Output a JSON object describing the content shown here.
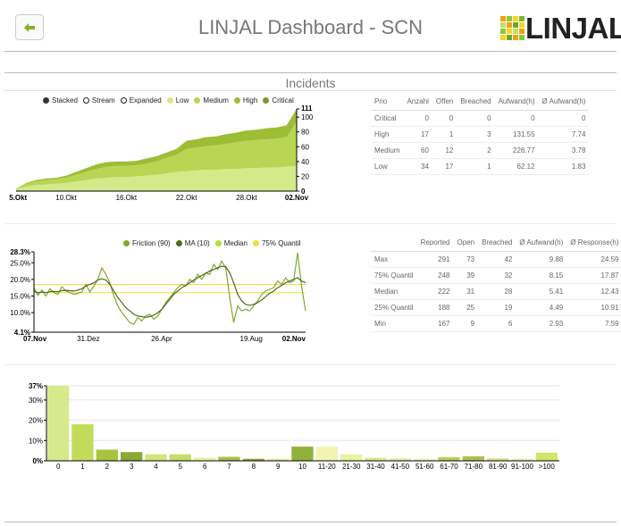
{
  "header": {
    "title": "LINJAL Dashboard - SCN",
    "logo_text": "LINJAL",
    "back_icon": "arrow-left-icon"
  },
  "section": {
    "title": "Incidents"
  },
  "colors": {
    "low": "#d4e98a",
    "medium": "#b8d654",
    "high": "#9bbe35",
    "critical": "#7a9a2a",
    "friction": "#7faa2b",
    "ma": "#4d6a1f",
    "median_line": "#b3df3a",
    "quantile_line": "#f0e03c",
    "bar_light": "#e4f0a0",
    "bar_mid": "#c8df6e",
    "bar_dark": "#9ab43f"
  },
  "area_chart": {
    "legend": [
      {
        "label": "Stacked",
        "style": "filled-dark"
      },
      {
        "label": "Stream",
        "style": "hollow"
      },
      {
        "label": "Expanded",
        "style": "hollow"
      },
      {
        "label": "Low",
        "style": "low"
      },
      {
        "label": "Medium",
        "style": "medium"
      },
      {
        "label": "High",
        "style": "high"
      },
      {
        "label": "Critical",
        "style": "critical"
      }
    ],
    "x_ticks": [
      "05.Okt",
      "10.Okt",
      "16.Okt",
      "22.Okt",
      "28.Okt",
      "02.Nov"
    ],
    "y_ticks": [
      "0",
      "20",
      "40",
      "60",
      "80",
      "100",
      "111"
    ]
  },
  "chart_data": [
    {
      "type": "area",
      "stacked": true,
      "x": [
        "05.Okt",
        "06.Okt",
        "07.Okt",
        "08.Okt",
        "09.Okt",
        "10.Okt",
        "11.Okt",
        "12.Okt",
        "13.Okt",
        "14.Okt",
        "15.Okt",
        "16.Okt",
        "17.Okt",
        "18.Okt",
        "19.Okt",
        "20.Okt",
        "21.Okt",
        "22.Okt",
        "23.Okt",
        "24.Okt",
        "25.Okt",
        "26.Okt",
        "27.Okt",
        "28.Okt",
        "29.Okt",
        "30.Okt",
        "31.Okt",
        "01.Nov",
        "02.Nov"
      ],
      "series": [
        {
          "name": "Low",
          "values": [
            2,
            6,
            8,
            9,
            10,
            11,
            13,
            15,
            17,
            18,
            19,
            19,
            20,
            21,
            22,
            24,
            26,
            27,
            28,
            29,
            29,
            30,
            30,
            31,
            31,
            32,
            32,
            33,
            34
          ]
        },
        {
          "name": "Medium",
          "values": [
            1,
            4,
            5,
            6,
            6,
            7,
            9,
            11,
            13,
            15,
            15,
            15,
            15,
            16,
            18,
            21,
            23,
            30,
            31,
            32,
            33,
            34,
            36,
            37,
            38,
            38,
            39,
            40,
            60
          ]
        },
        {
          "name": "High",
          "values": [
            0,
            1,
            2,
            2,
            2,
            3,
            4,
            5,
            6,
            6,
            6,
            6,
            6,
            7,
            7,
            7,
            8,
            11,
            11,
            12,
            12,
            13,
            13,
            14,
            14,
            15,
            15,
            16,
            17
          ]
        },
        {
          "name": "Critical",
          "values": [
            0,
            0,
            0,
            0,
            0,
            0,
            0,
            0,
            0,
            0,
            0,
            0,
            0,
            0,
            0,
            0,
            0,
            0,
            0,
            0,
            0,
            0,
            0,
            0,
            0,
            0,
            0,
            0,
            0
          ]
        }
      ],
      "ylim": [
        0,
        111
      ]
    },
    {
      "type": "line",
      "x_ticks": [
        "07.Nov",
        "31.Dez",
        "26.Apr",
        "19.Aug",
        "02.Nov"
      ],
      "y_ticks": [
        "4.1%",
        "10.0%",
        "15.0%",
        "20.0%",
        "25.0%",
        "28.3%"
      ],
      "ylim": [
        4.1,
        28.3
      ],
      "series": [
        {
          "name": "Friction (90)",
          "values": [
            17.5,
            15.2,
            16.8,
            15.0,
            17.2,
            16.0,
            15.5,
            17.8,
            16.5,
            16.0,
            15.5,
            15.8,
            16.2,
            18.5,
            16.2,
            18.0,
            20.0,
            23.5,
            21.5,
            19.0,
            15.0,
            12.0,
            10.0,
            8.5,
            7.0,
            6.5,
            8.5,
            7.5,
            9.0,
            9.5,
            8.0,
            9.0,
            11.0,
            13.0,
            14.5,
            16.0,
            17.5,
            18.5,
            18.0,
            20.0,
            19.0,
            21.5,
            20.0,
            22.0,
            21.5,
            24.5,
            23.0,
            25.5,
            23.5,
            14.5,
            7.0,
            12.0,
            10.5,
            11.0,
            10.5,
            12.0,
            13.5,
            15.5,
            16.5,
            17.0,
            17.5,
            19.5,
            18.5,
            20.5,
            19.0,
            19.5,
            28.0,
            18.0,
            10.5
          ]
        },
        {
          "name": "MA (10)",
          "values": [
            16.5,
            16.0,
            16.2,
            16.0,
            16.3,
            16.4,
            16.3,
            16.6,
            16.7,
            16.6,
            16.5,
            16.8,
            17.2,
            18.0,
            18.5,
            19.0,
            19.8,
            20.2,
            19.8,
            18.5,
            16.5,
            14.5,
            13.0,
            11.5,
            10.5,
            9.5,
            9.0,
            8.8,
            8.6,
            8.8,
            9.2,
            10.0,
            11.0,
            12.5,
            14.0,
            15.5,
            16.5,
            17.5,
            18.2,
            19.0,
            19.8,
            20.5,
            21.2,
            21.8,
            22.5,
            23.0,
            23.5,
            24.0,
            23.8,
            22.0,
            19.0,
            15.5,
            13.5,
            12.5,
            12.2,
            12.5,
            13.0,
            13.8,
            14.8,
            15.8,
            16.5,
            17.5,
            18.2,
            19.0,
            19.5,
            20.0,
            20.5,
            19.5,
            19.0
          ]
        },
        {
          "name": "Median",
          "values": [
            16.0
          ]
        },
        {
          "name": "75% Quantil",
          "values": [
            18.5
          ]
        }
      ]
    },
    {
      "type": "bar",
      "categories": [
        "0",
        "1",
        "2",
        "3",
        "4",
        "5",
        "6",
        "7",
        "8",
        "9",
        "10",
        "11-20",
        "21-30",
        "31-40",
        "41-50",
        "51-60",
        "61-70",
        "71-80",
        "81-90",
        "91-100",
        ">100"
      ],
      "values": [
        37,
        18,
        5.5,
        4.3,
        3.2,
        3.2,
        1.5,
        2.0,
        1.0,
        1.0,
        7.0,
        7.0,
        3.2,
        1.5,
        1.2,
        1.0,
        1.8,
        2.2,
        1.2,
        1.0,
        4.0
      ],
      "y_ticks": [
        "0%",
        "10%",
        "20%",
        "30%",
        "37%"
      ],
      "ylim": [
        0,
        37
      ]
    }
  ],
  "prio_table": {
    "headers": [
      "Prio",
      "Anzahl",
      "Offen",
      "Breached",
      "Aufwand(h)",
      "Ø Aufwand(h)"
    ],
    "rows": [
      [
        "Critical",
        "0",
        "0",
        "0",
        "0",
        "0"
      ],
      [
        "High",
        "17",
        "1",
        "3",
        "131.55",
        "7.74"
      ],
      [
        "Medium",
        "60",
        "12",
        "2",
        "226.77",
        "3.78"
      ],
      [
        "Low",
        "34",
        "17",
        "1",
        "62.12",
        "1.83"
      ]
    ]
  },
  "friction_chart": {
    "legend": [
      "Friction (90)",
      "MA (10)",
      "Median",
      "75% Quantil"
    ]
  },
  "friction_table": {
    "headers": [
      "",
      "Reported",
      "Open",
      "Breached",
      "Ø Aufwand(h)",
      "Ø Response(h)"
    ],
    "rows": [
      [
        "Max",
        "291",
        "73",
        "42",
        "9.88",
        "24.59"
      ],
      [
        "75% Quantil",
        "248",
        "39",
        "32",
        "8.15",
        "17.87"
      ],
      [
        "Median",
        "222",
        "31",
        "28",
        "5.41",
        "12.43"
      ],
      [
        "25% Quantil",
        "188",
        "25",
        "19",
        "4.49",
        "10.91"
      ],
      [
        "Min",
        "167",
        "9",
        "6",
        "2.93",
        "7.59"
      ]
    ]
  }
}
